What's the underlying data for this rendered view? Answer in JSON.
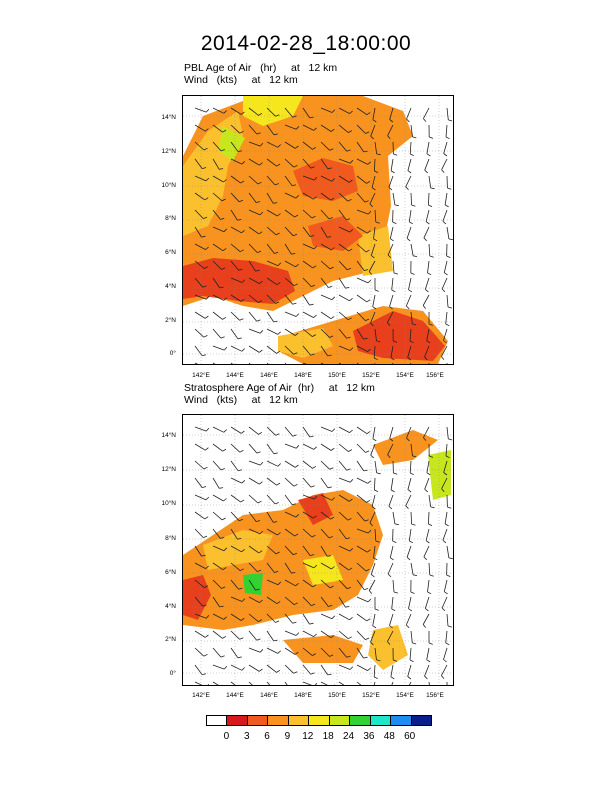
{
  "title": "2014-02-28_18:00:00",
  "panels": [
    {
      "title_line1": "PBL Age of Air   (hr)     at   12 km",
      "title_line2": "Wind   (kts)     at   12 km"
    },
    {
      "title_line1": "Stratosphere Age of Air  (hr)     at   12 km",
      "title_line2": "Wind   (kts)     at   12 km"
    }
  ],
  "lat_labels": [
    "14°N",
    "12°N",
    "10°N",
    "8°N",
    "6°N",
    "4°N",
    "2°N",
    "0°"
  ],
  "lon_labels": [
    "142°E",
    "144°E",
    "146°E",
    "148°E",
    "150°E",
    "152°E",
    "154°E",
    "156°E"
  ],
  "legend": {
    "labels": [
      "0",
      "3",
      "6",
      "9",
      "12",
      "18",
      "24",
      "36",
      "48",
      "60"
    ],
    "colors": [
      "#ffffff",
      "#d7191c",
      "#f05a1e",
      "#f7931e",
      "#fbc02d",
      "#f5e61e",
      "#c8e61e",
      "#32d232",
      "#1ee6c8",
      "#1e8cf0",
      "#0a1e8c"
    ]
  }
}
